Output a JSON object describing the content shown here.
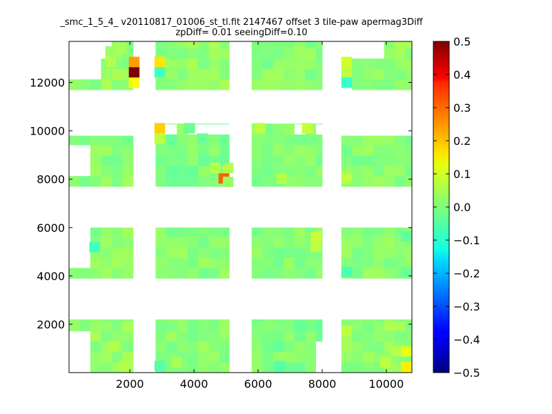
{
  "title_line1": "_smc_1_5_4_ v20110817_01006_st_tl.fit 2147467 offset 3 tile-paw apermag3Diff",
  "title_line2": "zpDiff= 0.01 seeingDiff=0.10",
  "chart_data": {
    "type": "heatmap",
    "title": "_smc_1_5_4_ v20110817_01006_st_tl.fit 2147467 offset 3 tile-paw apermag3Diff",
    "subtitle": "zpDiff= 0.01 seeingDiff=0.10",
    "xlim": [
      100,
      10800
    ],
    "ylim": [
      0,
      13700
    ],
    "xticks": [
      2000,
      4000,
      6000,
      8000,
      10000
    ],
    "yticks": [
      2000,
      4000,
      6000,
      8000,
      10000,
      12000
    ],
    "cell_width": 333,
    "cell_height": 430,
    "colormap": "jet",
    "colorbar": {
      "range": [
        -0.5,
        0.5
      ],
      "ticks": [
        "0.5",
        "0.4",
        "0.3",
        "0.2",
        "0.1",
        "0.0",
        "−0.1",
        "−0.2",
        "−0.3",
        "−0.4",
        "−0.5"
      ]
    },
    "blocks": [
      {
        "x": [
          100,
          2100
        ],
        "y": [
          0,
          2200
        ],
        "value": 0.02
      },
      {
        "x": [
          2800,
          5100
        ],
        "y": [
          0,
          2200
        ],
        "value": 0.01
      },
      {
        "x": [
          5800,
          8000
        ],
        "y": [
          0,
          2200
        ],
        "value": 0.0
      },
      {
        "x": [
          8600,
          10800
        ],
        "y": [
          0,
          2200
        ],
        "value": 0.02
      },
      {
        "x": [
          100,
          2100
        ],
        "y": [
          3900,
          6000
        ],
        "value": 0.01
      },
      {
        "x": [
          2800,
          5100
        ],
        "y": [
          3900,
          6000
        ],
        "value": 0.01
      },
      {
        "x": [
          5800,
          8000
        ],
        "y": [
          3900,
          6000
        ],
        "value": 0.01
      },
      {
        "x": [
          8600,
          10800
        ],
        "y": [
          3900,
          6000
        ],
        "value": 0.01
      },
      {
        "x": [
          100,
          2100
        ],
        "y": [
          7700,
          9800
        ],
        "value": 0.01
      },
      {
        "x": [
          2800,
          5100
        ],
        "y": [
          7700,
          10300
        ],
        "value": 0.0
      },
      {
        "x": [
          5800,
          8000
        ],
        "y": [
          7700,
          10300
        ],
        "value": 0.01
      },
      {
        "x": [
          8600,
          10800
        ],
        "y": [
          7700,
          9800
        ],
        "value": 0.01
      },
      {
        "x": [
          100,
          2100
        ],
        "y": [
          11700,
          13700
        ],
        "value": 0.02
      },
      {
        "x": [
          2800,
          5100
        ],
        "y": [
          11700,
          13700
        ],
        "value": 0.02
      },
      {
        "x": [
          5800,
          8000
        ],
        "y": [
          11700,
          13700
        ],
        "value": 0.01
      },
      {
        "x": [
          8600,
          10800
        ],
        "y": [
          11700,
          13700
        ],
        "value": 0.02
      }
    ],
    "missing": [
      {
        "x": [
          100,
          766
        ],
        "y": [
          0,
          1760
        ]
      },
      {
        "x": [
          100,
          766
        ],
        "y": [
          4330,
          5910
        ]
      },
      {
        "x": [
          100,
          766
        ],
        "y": [
          8110,
          9370
        ]
      },
      {
        "x": [
          100,
          1100
        ],
        "y": [
          12130,
          13700
        ]
      },
      {
        "x": [
          1100,
          1433
        ],
        "y": [
          12900,
          13700
        ]
      },
      {
        "x": [
          7666,
          8000
        ],
        "y": [
          0,
          1300
        ]
      },
      {
        "x": [
          8600,
          9933
        ],
        "y": [
          12900,
          13700
        ]
      },
      {
        "x": [
          10466,
          10800
        ],
        "y": [
          0,
          450
        ]
      },
      {
        "x": [
          4766,
          5100
        ],
        "y": [
          9850,
          10300
        ]
      },
      {
        "x": [
          2800,
          3466
        ],
        "y": [
          9850,
          10300
        ]
      },
      {
        "x": [
          3766,
          5100
        ],
        "y": [
          9850,
          10300
        ]
      },
      {
        "x": [
          7133,
          7466
        ],
        "y": [
          9850,
          10300
        ]
      },
      {
        "x": [
          7733,
          8000
        ],
        "y": [
          9850,
          10300
        ]
      },
      {
        "x": [
          5800,
          8000
        ],
        "y": [
          9800,
          9850
        ]
      },
      {
        "x": [
          8600,
          8933
        ],
        "y": [
          11700,
          12030
        ]
      }
    ],
    "outliers": [
      {
        "x": 2133,
        "y": 12850,
        "value": 0.22
      },
      {
        "x": 2133,
        "y": 12420,
        "value": 0.5
      },
      {
        "x": 2133,
        "y": 11990,
        "value": 0.12
      },
      {
        "x": 2933,
        "y": 12850,
        "value": 0.15
      },
      {
        "x": 2933,
        "y": 12420,
        "value": -0.06
      },
      {
        "x": 2933,
        "y": 10110,
        "value": 0.17
      },
      {
        "x": 2933,
        "y": 9680,
        "value": 0.06
      },
      {
        "x": 4933,
        "y": 8030,
        "value": 0.28
      },
      {
        "x": 4666,
        "y": 8460,
        "value": 0.05
      },
      {
        "x": 8766,
        "y": 12850,
        "value": 0.08
      },
      {
        "x": 8766,
        "y": 12420,
        "value": 0.06
      },
      {
        "x": 8766,
        "y": 11990,
        "value": -0.07
      },
      {
        "x": 8766,
        "y": 8030,
        "value": 0.06
      },
      {
        "x": 8766,
        "y": 4160,
        "value": -0.05
      },
      {
        "x": 8766,
        "y": 1730,
        "value": 0.06
      },
      {
        "x": 7800,
        "y": 5630,
        "value": 0.07
      },
      {
        "x": 7800,
        "y": 5200,
        "value": 0.06
      },
      {
        "x": 6066,
        "y": 10110,
        "value": 0.06
      },
      {
        "x": 7533,
        "y": 10110,
        "value": 0.07
      },
      {
        "x": 6733,
        "y": 8030,
        "value": 0.05
      },
      {
        "x": 900,
        "y": 5190,
        "value": -0.06
      },
      {
        "x": 1400,
        "y": 12850,
        "value": 0.05
      },
      {
        "x": 1400,
        "y": 13280,
        "value": 0.03
      },
      {
        "x": 1733,
        "y": 13430,
        "value": 0.04
      },
      {
        "x": 7266,
        "y": 13280,
        "value": 0.03
      },
      {
        "x": 10633,
        "y": 880,
        "value": 0.1
      },
      {
        "x": 10633,
        "y": 230,
        "value": 0.14
      },
      {
        "x": 6666,
        "y": 270,
        "value": -0.04
      },
      {
        "x": 2933,
        "y": 270,
        "value": -0.04
      },
      {
        "x": 1833,
        "y": 270,
        "value": 0.05
      },
      {
        "x": 1500,
        "y": 1100,
        "value": 0.05
      },
      {
        "x": 9966,
        "y": 430,
        "value": 0.06
      },
      {
        "x": 10300,
        "y": 880,
        "value": 0.05
      },
      {
        "x": 3466,
        "y": 430,
        "value": 0.04
      },
      {
        "x": 5066,
        "y": 8460,
        "value": 0.05
      },
      {
        "x": 5066,
        "y": 7890,
        "value": 0.02
      },
      {
        "x": 4266,
        "y": 9680,
        "value": -0.02
      },
      {
        "x": 3866,
        "y": 10110,
        "value": -0.02
      },
      {
        "x": 10633,
        "y": 5630,
        "value": -0.03
      },
      {
        "x": 10633,
        "y": 4160,
        "value": -0.02
      }
    ]
  }
}
